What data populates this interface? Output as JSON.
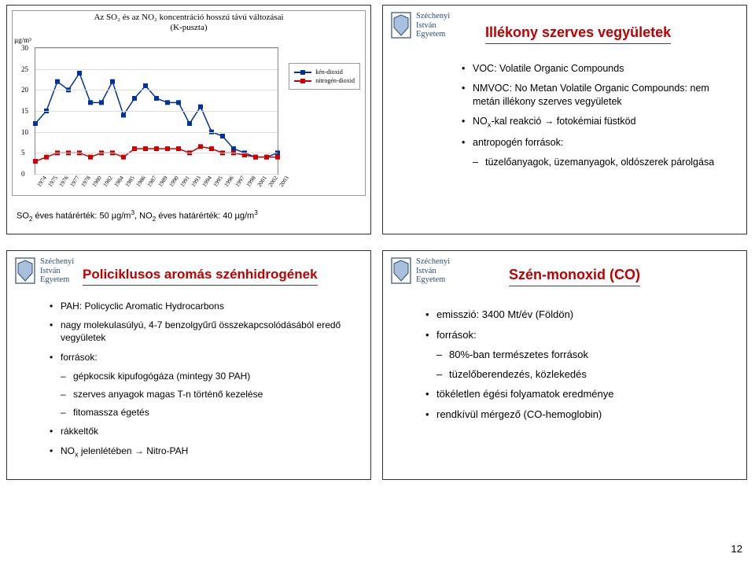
{
  "university": {
    "line1": "Széchenyi",
    "line2": "István",
    "line3": "Egyetem"
  },
  "logo_colors": {
    "stroke": "#2d4b78",
    "fill": "#a8c0dd"
  },
  "page_number": "12",
  "top_left": {
    "chart_title_l1": "Az SO₂ és az NO₂ koncentráció hosszú távú változásai",
    "chart_title_l2": "(K-puszta)",
    "y_axis_label": "µg/m³",
    "legend_so2": "kén-dioxid",
    "legend_no2": "nitrogén-dioxid",
    "caption": "SO₂ éves határérték: 50 µg/m³, NO₂ éves határérték: 40 µg/m³",
    "chart": {
      "type": "line",
      "y_ticks": [
        0,
        5,
        10,
        15,
        20,
        25,
        30
      ],
      "ylim": [
        0,
        30
      ],
      "x_years": [
        1974,
        1975,
        1976,
        1977,
        1978,
        1980,
        1982,
        1984,
        1985,
        1986,
        1987,
        1989,
        1990,
        1991,
        1993,
        1994,
        1995,
        1996,
        1997,
        1998,
        2001,
        2002,
        2003
      ],
      "so2_values": [
        12,
        15,
        22,
        20,
        24,
        17,
        17,
        22,
        14,
        18,
        21,
        18,
        17,
        17,
        12,
        16,
        10,
        9,
        6,
        5,
        4,
        4,
        5
      ],
      "no2_values": [
        3,
        4,
        5,
        5,
        5,
        4,
        5,
        5,
        4,
        6,
        6,
        6,
        6,
        6,
        5,
        6.5,
        6,
        5,
        5,
        4.5,
        4,
        4,
        4
      ],
      "so2_color": "#003399",
      "no2_color": "#cc0000",
      "grid_color": "#dddddd",
      "background": "#ffffff",
      "marker_size": 6,
      "line_width": 1.5
    }
  },
  "top_right": {
    "title": "Illékony szerves vegyületek",
    "bullets": [
      "VOC: Volatile Organic Compounds",
      "NMVOC: No Metan Volatile Organic Compounds: nem metán illékony szerves vegyületek",
      "NOₓ-kal reakció → fotokémiai füstköd",
      "antropogén források:"
    ],
    "sub_bullets": [
      "tüzelőanyagok, üzemanyagok, oldószerek párolgása"
    ]
  },
  "bottom_left": {
    "title": "Policiklusos aromás szénhidrogének",
    "b1": "PAH: Policyclic Aromatic Hydrocarbons",
    "b2": "nagy molekulasúlyú, 4-7 benzolgyűrű összekapcsolódásából eredő vegyületek",
    "b3": "források:",
    "sub": [
      "gépkocsik kipufogógáza (mintegy 30 PAH)",
      "szerves anyagok magas T-n történő kezelése",
      "fitomassza égetés"
    ],
    "b4": "rákkeltők",
    "b5": "NOₓ jelenlétében → Nitro-PAH"
  },
  "bottom_right": {
    "title": "Szén-monoxid (CO)",
    "b1": "emisszió: 3400 Mt/év (Földön)",
    "b2": "források:",
    "sub": [
      "80%-ban természetes források",
      "tüzelőberendezés, közlekedés"
    ],
    "b3": "tökéletlen égési folyamatok eredménye",
    "b4": "rendkívül mérgező (CO-hemoglobin)"
  }
}
